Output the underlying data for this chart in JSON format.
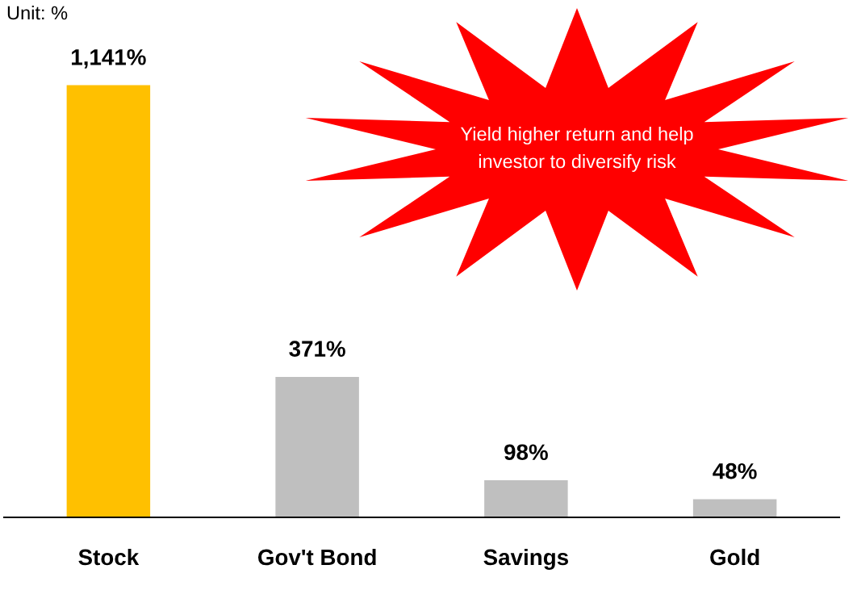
{
  "chart_data": {
    "type": "bar",
    "ylabel": "Unit: %",
    "categories": [
      "Stock",
      "Gov't Bond",
      "Savings",
      "Gold"
    ],
    "values": [
      1141,
      371,
      98,
      48
    ],
    "colors": [
      "#ffc000",
      "#bfbfbf",
      "#bfbfbf",
      "#bfbfbf"
    ],
    "value_labels": [
      "1,141%",
      "371%",
      "98%",
      "48%"
    ],
    "annotations": [
      "Yield higher return and help\ninvestor to diversify risk"
    ],
    "grid": false,
    "legend": false
  }
}
